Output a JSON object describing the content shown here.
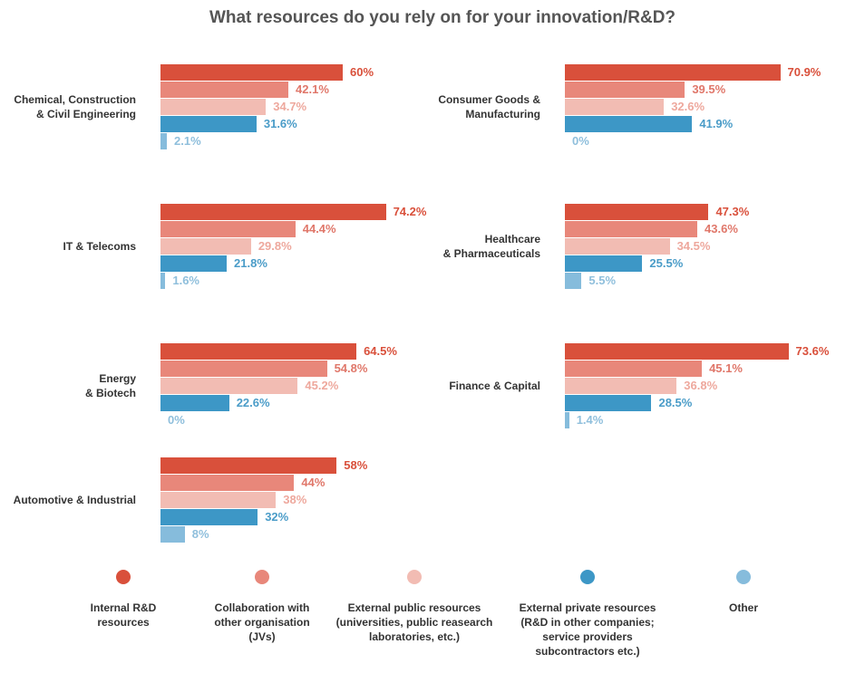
{
  "chart_data": {
    "type": "bar",
    "title": "What resources do you rely on for your innovation/R&D?",
    "categories": [
      "Chemical, Construction\n& Civil Engineering",
      "Consumer Goods &\nManufacturing",
      "IT & Telecoms",
      "Healthcare\n& Pharmaceuticals",
      "Energy\n& Biotech",
      "Finance & Capital",
      "Automotive & Industrial"
    ],
    "series": [
      {
        "name": "Internal R&D\nresources",
        "color": "#d9503b",
        "values": [
          60,
          70.9,
          74.2,
          47.3,
          64.5,
          73.6,
          58
        ],
        "value_labels": [
          "60%",
          "70.9%",
          "74.2%",
          "47.3%",
          "64.5%",
          "73.6%",
          "58%"
        ]
      },
      {
        "name": "Collaboration with\nother organisation\n(JVs)",
        "color": "#e8877a",
        "values": [
          42.1,
          39.5,
          44.4,
          43.6,
          54.8,
          45.1,
          44
        ],
        "value_labels": [
          "42.1%",
          "39.5%",
          "44.4%",
          "43.6%",
          "54.8%",
          "45.1%",
          "44%"
        ]
      },
      {
        "name": "External public resources\n(universities, public reasearch\nlaboratories, etc.)",
        "color": "#f2bcb3",
        "values": [
          34.7,
          32.6,
          29.8,
          34.5,
          45.2,
          36.8,
          38
        ],
        "value_labels": [
          "34.7%",
          "32.6%",
          "29.8%",
          "34.5%",
          "45.2%",
          "36.8%",
          "38%"
        ]
      },
      {
        "name": "External private resources\n(R&D in other companies;\nservice providers\nsubcontractors etc.)",
        "color": "#3d97c6",
        "values": [
          31.6,
          41.9,
          21.8,
          25.5,
          22.6,
          28.5,
          32
        ],
        "value_labels": [
          "31.6%",
          "41.9%",
          "21.8%",
          "25.5%",
          "22.6%",
          "28.5%",
          "32%"
        ]
      },
      {
        "name": "Other",
        "color": "#86bcdc",
        "values": [
          2.1,
          0,
          1.6,
          5.5,
          0,
          1.4,
          8
        ],
        "value_labels": [
          "2.1%",
          "0%",
          "1.6%",
          "5.5%",
          "0%",
          "1.4%",
          "8%"
        ]
      }
    ]
  }
}
